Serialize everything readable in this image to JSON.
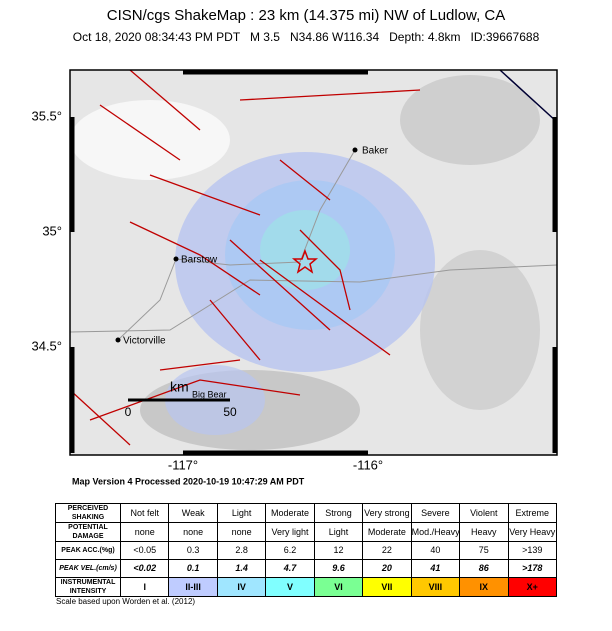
{
  "header": {
    "title": "CISN/cgs ShakeMap : 23 km (14.375 mi) NW of Ludlow, CA",
    "subtitle": "Oct 18, 2020 08:34:43 PM PDT   M 3.5   N34.86 W116.34   Depth: 4.8km   ID:39667688"
  },
  "map": {
    "lat_labels": [
      "35.5°",
      "35°",
      "34.5°"
    ],
    "lon_labels": [
      "-117°",
      "-116°"
    ],
    "places": [
      "Baker",
      "Barstow",
      "Victorville",
      "Big Bear"
    ],
    "scale": {
      "unit": "km",
      "start": "0",
      "end": "50"
    },
    "version": "Map Version 4 Processed 2020-10-19 10:47:29 AM PDT"
  },
  "table": {
    "rows": [
      [
        "PERCEIVED SHAKING",
        "Not felt",
        "Weak",
        "Light",
        "Moderate",
        "Strong",
        "Very strong",
        "Severe",
        "Violent",
        "Extreme"
      ],
      [
        "POTENTIAL DAMAGE",
        "none",
        "none",
        "none",
        "Very light",
        "Light",
        "Moderate",
        "Mod./Heavy",
        "Heavy",
        "Very Heavy"
      ],
      [
        "PEAK ACC.(%g)",
        "<0.05",
        "0.3",
        "2.8",
        "6.2",
        "12",
        "22",
        "40",
        "75",
        ">139"
      ],
      [
        "PEAK VEL.(cm/s)",
        "<0.02",
        "0.1",
        "1.4",
        "4.7",
        "9.6",
        "20",
        "41",
        "86",
        ">178"
      ],
      [
        "INSTRUMENTAL INTENSITY",
        "I",
        "II-III",
        "IV",
        "V",
        "VI",
        "VII",
        "VIII",
        "IX",
        "X+"
      ]
    ]
  },
  "footer": "Scale based upon Worden et al. (2012)"
}
